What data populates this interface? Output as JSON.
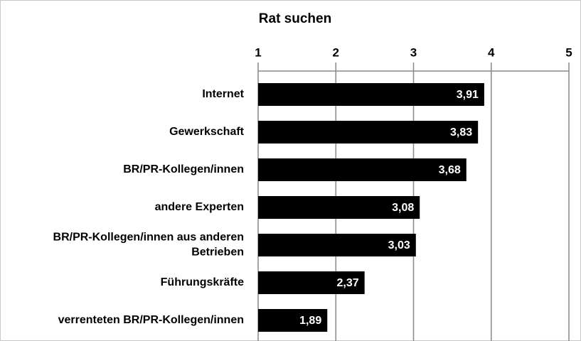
{
  "chart_data": {
    "type": "bar",
    "orientation": "horizontal",
    "title": "Rat suchen",
    "categories": [
      "Internet",
      "Gewerkschaft",
      "BR/PR-Kollegen/innen",
      "andere Experten",
      "BR/PR-Kollegen/innen aus anderen Betrieben",
      "Führungskräfte",
      "verrenteten BR/PR-Kollegen/innen"
    ],
    "values": [
      3.91,
      3.83,
      3.68,
      3.08,
      3.03,
      2.37,
      1.89
    ],
    "value_labels": [
      "3,91",
      "3,83",
      "3,68",
      "3,08",
      "3,03",
      "2,37",
      "1,89"
    ],
    "color": "#000000",
    "xlim": [
      1,
      5
    ],
    "xticks": [
      1,
      2,
      3,
      4,
      5
    ],
    "grid": true
  }
}
